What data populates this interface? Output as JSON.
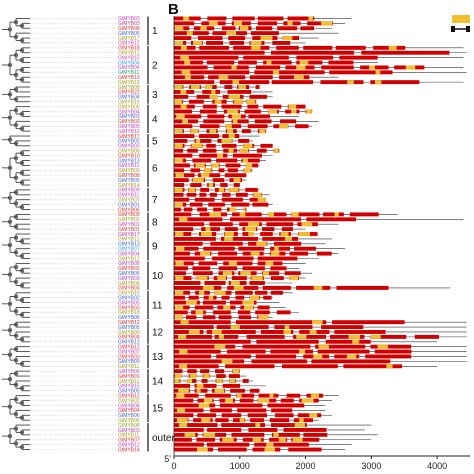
{
  "panel": {
    "letter": "B"
  },
  "legend": {
    "cds_color": "#d00000",
    "motif_color": "#f0c030"
  },
  "axis": {
    "ticks": [
      {
        "value": 0,
        "label": "0"
      },
      {
        "value": 1000,
        "label": "1000"
      },
      {
        "value": 2000,
        "label": "2000"
      },
      {
        "value": 3000,
        "label": "3000"
      },
      {
        "value": 4000,
        "label": "4000"
      }
    ],
    "start_label": "5'",
    "max": 4500
  },
  "groups": [
    {
      "label": "1",
      "start": 0,
      "count": 6
    },
    {
      "label": "2",
      "start": 6,
      "count": 8
    },
    {
      "label": "3",
      "start": 14,
      "count": 4
    },
    {
      "label": "4",
      "start": 18,
      "count": 6
    },
    {
      "label": "5",
      "start": 24,
      "count": 3
    },
    {
      "label": "6",
      "start": 27,
      "count": 8
    },
    {
      "label": "7",
      "start": 35,
      "count": 5
    },
    {
      "label": "8",
      "start": 40,
      "count": 4
    },
    {
      "label": "9",
      "start": 44,
      "count": 6
    },
    {
      "label": "10",
      "start": 50,
      "count": 6
    },
    {
      "label": "11",
      "start": 56,
      "count": 6
    },
    {
      "label": "12",
      "start": 62,
      "count": 5
    },
    {
      "label": "13",
      "start": 67,
      "count": 5
    },
    {
      "label": "14",
      "start": 72,
      "count": 5
    },
    {
      "label": "15",
      "start": 77,
      "count": 6
    },
    {
      "label": "outer",
      "start": 83,
      "count": 6
    }
  ],
  "genes": [
    {
      "name": "GtMYB03",
      "color": "#d040c0",
      "len": 2700
    },
    {
      "name": "GtMYB03",
      "color": "#c04080",
      "len": 2600
    },
    {
      "name": "GtMYB08",
      "color": "#e03030",
      "len": 2400
    },
    {
      "name": "GtMYB05",
      "color": "#4060e0",
      "len": 2500
    },
    {
      "name": "GtMYB17",
      "color": "#a0a020",
      "len": 2200
    },
    {
      "name": "GtMYB12",
      "color": "#e040a0",
      "len": 2000
    },
    {
      "name": "GtMYB18",
      "color": "#e03030",
      "len": 4400
    },
    {
      "name": "GtMYB12",
      "color": "#a0a020",
      "len": 4450
    },
    {
      "name": "GtMYB15",
      "color": "#e040c0",
      "len": 4400
    },
    {
      "name": "GtMYB04",
      "color": "#30a0e0",
      "len": 3100
    },
    {
      "name": "GtMYB04",
      "color": "#c040c0",
      "len": 4400
    },
    {
      "name": "GtMYB11",
      "color": "#20a060",
      "len": 4450
    },
    {
      "name": "GtMYB13",
      "color": "#e03030",
      "len": 2500
    },
    {
      "name": "GtMYB19",
      "color": "#a0a020",
      "len": 4400
    },
    {
      "name": "GtMYB08",
      "color": "#a0a020",
      "len": 1300
    },
    {
      "name": "GtMYB22",
      "color": "#e03030",
      "len": 1500
    },
    {
      "name": "GtMYB04",
      "color": "#4060e0",
      "len": 1500
    },
    {
      "name": "GtMYB16",
      "color": "#a0a020",
      "len": 1250
    },
    {
      "name": "GtMYB06",
      "color": "#a0a020",
      "len": 2000
    },
    {
      "name": "GtMYB04",
      "color": "#c040c0",
      "len": 2100
    },
    {
      "name": "GtMYB03",
      "color": "#4060e0",
      "len": 1900
    },
    {
      "name": "GtMYB03",
      "color": "#e03030",
      "len": 2200
    },
    {
      "name": "GtMYB05",
      "color": "#c040c0",
      "len": 2100
    },
    {
      "name": "GtMYB12",
      "color": "#e040a0",
      "len": 1400
    },
    {
      "name": "GtMYB17",
      "color": "#e03030",
      "len": 1300
    },
    {
      "name": "GtMYB02",
      "color": "#4060e0",
      "len": 1200
    },
    {
      "name": "GtMYB03",
      "color": "#c040c0",
      "len": 1500
    },
    {
      "name": "GtMYB06",
      "color": "#a0a020",
      "len": 1600
    },
    {
      "name": "GtMYB10",
      "color": "#e03030",
      "len": 1500
    },
    {
      "name": "GtMYB13",
      "color": "#4060e0",
      "len": 1400
    },
    {
      "name": "GtMYB11",
      "color": "#c040c0",
      "len": 1300
    },
    {
      "name": "GtMYB09",
      "color": "#a0a020",
      "len": 1200
    },
    {
      "name": "GtMYB08",
      "color": "#e03030",
      "len": 1100
    },
    {
      "name": "GtMYB05",
      "color": "#4060e0",
      "len": 1100
    },
    {
      "name": "GtMYB14",
      "color": "#a0a020",
      "len": 1000
    },
    {
      "name": "GtMYB09",
      "color": "#c040c0",
      "len": 1300
    },
    {
      "name": "GtMYB11",
      "color": "#e040c0",
      "len": 1450
    },
    {
      "name": "GtMYB07",
      "color": "#a0a020",
      "len": 1400
    },
    {
      "name": "GtMYB01",
      "color": "#4060e0",
      "len": 1500
    },
    {
      "name": "GtMYB06",
      "color": "#e03030",
      "len": 1100
    },
    {
      "name": "GtMYB09",
      "color": "#e03030",
      "len": 3400
    },
    {
      "name": "GtMYB02",
      "color": "#a0a020",
      "len": 4400
    },
    {
      "name": "GtMYB01",
      "color": "#c040c0",
      "len": 2500
    },
    {
      "name": "GtMYB01",
      "color": "#e03030",
      "len": 2000
    },
    {
      "name": "GtMYB17",
      "color": "#c040c0",
      "len": 2200
    },
    {
      "name": "GtMYB12",
      "color": "#a0a020",
      "len": 2400
    },
    {
      "name": "GtMYB13",
      "color": "#4060e0",
      "len": 2300
    },
    {
      "name": "GtMYB07",
      "color": "#30a0e0",
      "len": 2600
    },
    {
      "name": "GtMYB04",
      "color": "#c040c0",
      "len": 2500
    },
    {
      "name": "GtMYB12",
      "color": "#a0a020",
      "len": 2200
    },
    {
      "name": "GtMYB08",
      "color": "#c040c0",
      "len": 2000
    },
    {
      "name": "GtMYB03",
      "color": "#e03030",
      "len": 1900
    },
    {
      "name": "GtMYB05",
      "color": "#4060e0",
      "len": 2100
    },
    {
      "name": "GtMYB03",
      "color": "#c040c0",
      "len": 2000
    },
    {
      "name": "GtMYB06",
      "color": "#a0a020",
      "len": 1800
    },
    {
      "name": "GtMYB03",
      "color": "#e03030",
      "len": 4200
    },
    {
      "name": "GtMYB16",
      "color": "#a0a020",
      "len": 1800
    },
    {
      "name": "GtMYB02",
      "color": "#4060e0",
      "len": 1500
    },
    {
      "name": "GtMYB05",
      "color": "#c040c0",
      "len": 1600
    },
    {
      "name": "GtMYB03",
      "color": "#e03030",
      "len": 1700
    },
    {
      "name": "GtMYB18",
      "color": "#a0a020",
      "len": 1900
    },
    {
      "name": "GtMYB06",
      "color": "#4060e0",
      "len": 1500
    },
    {
      "name": "GtMYB12",
      "color": "#e03030",
      "len": 4450
    },
    {
      "name": "GtMYB05",
      "color": "#4060e0",
      "len": 4450
    },
    {
      "name": "GtMYB09",
      "color": "#a0a020",
      "len": 4450
    },
    {
      "name": "GtMYB04",
      "color": "#e03030",
      "len": 4450
    },
    {
      "name": "GtMYB13",
      "color": "#4060e0",
      "len": 4000
    },
    {
      "name": "GtMYB12",
      "color": "#e03030",
      "len": 4450
    },
    {
      "name": "GtMYB07",
      "color": "#c040c0",
      "len": 4450
    },
    {
      "name": "GtMYB03",
      "color": "#e03030",
      "len": 4450
    },
    {
      "name": "GtMYB09",
      "color": "#4060e0",
      "len": 4450
    },
    {
      "name": "GtMYB11",
      "color": "#a0a020",
      "len": 4000
    },
    {
      "name": "GtMYB06",
      "color": "#c040c0",
      "len": 1000
    },
    {
      "name": "GtMYB01",
      "color": "#e03030",
      "len": 1100
    },
    {
      "name": "GtMYB11",
      "color": "#a0a020",
      "len": 1200
    },
    {
      "name": "GtMYB15",
      "color": "#c040c0",
      "len": 1400
    },
    {
      "name": "GtMYB05",
      "color": "#4060e0",
      "len": 1300
    },
    {
      "name": "GtMYB12",
      "color": "#e03030",
      "len": 2500
    },
    {
      "name": "GtMYB02",
      "color": "#a0a020",
      "len": 2400
    },
    {
      "name": "GtMYB08",
      "color": "#c040c0",
      "len": 2300
    },
    {
      "name": "GtMYB04",
      "color": "#e03030",
      "len": 2300
    },
    {
      "name": "GtMYB06",
      "color": "#4060e0",
      "len": 2400
    },
    {
      "name": "GtMYB06",
      "color": "#a0a020",
      "len": 2200
    },
    {
      "name": "GtMYB08",
      "color": "#a0a020",
      "len": 3000
    },
    {
      "name": "GtMYB03",
      "color": "#c040c0",
      "len": 2900
    },
    {
      "name": "GtMYB11",
      "color": "#a0a020",
      "len": 3100
    },
    {
      "name": "GtMYB07",
      "color": "#e03030",
      "len": 3000
    },
    {
      "name": "GtMYB12",
      "color": "#c040c0",
      "len": 2700
    },
    {
      "name": "GtMYB14",
      "color": "#e03030",
      "len": 2600
    }
  ]
}
